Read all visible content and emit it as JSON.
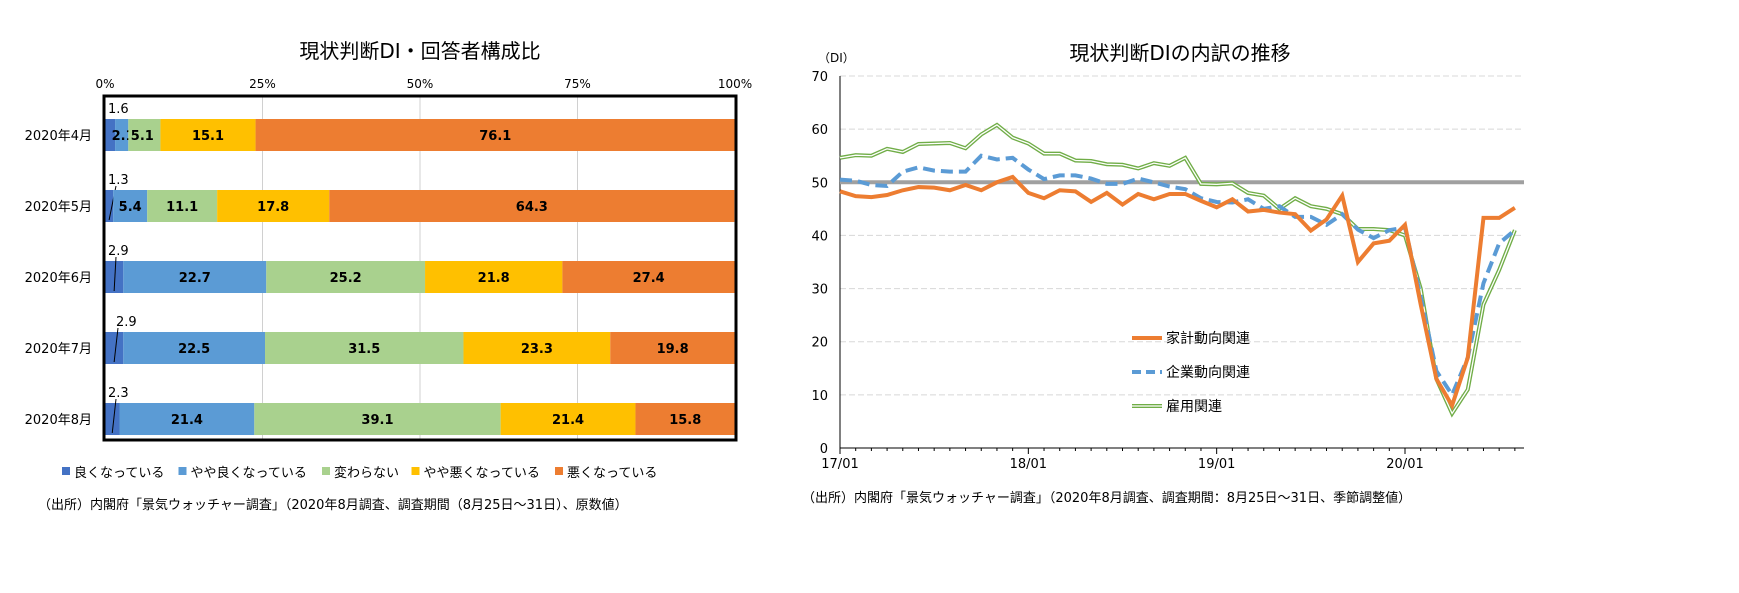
{
  "chart_data": [
    {
      "type": "bar",
      "orientation": "horizontal-stacked-100",
      "title": "現状判断DI・回答者構成比",
      "categories": [
        "2020年4月",
        "2020年5月",
        "2020年6月",
        "2020年7月",
        "2020年8月"
      ],
      "xticks": [
        "0%",
        "25%",
        "50%",
        "75%",
        "100%"
      ],
      "xlim": [
        0,
        100
      ],
      "series": [
        {
          "name": "良くなっている",
          "color": "#4472C4",
          "values": [
            1.6,
            1.3,
            2.9,
            2.9,
            2.3
          ]
        },
        {
          "name": "やや良くなっている",
          "color": "#5B9BD5",
          "values": [
            2.1,
            5.4,
            22.7,
            22.5,
            21.4
          ]
        },
        {
          "name": "変わらない",
          "color": "#A9D18E",
          "values": [
            5.1,
            11.1,
            25.2,
            31.5,
            39.1
          ]
        },
        {
          "name": "やや悪くなっている",
          "color": "#FFC000",
          "values": [
            15.1,
            17.8,
            21.8,
            23.3,
            21.4
          ]
        },
        {
          "name": "悪くなっている",
          "color": "#ED7D31",
          "values": [
            76.1,
            64.3,
            27.4,
            19.8,
            15.8
          ]
        }
      ],
      "legend": "bottom",
      "source": "（出所）内閣府「景気ウォッチャー調査」（2020年8月調査、調査期間（8月25日～31日）、原数値）"
    },
    {
      "type": "line",
      "title": "現状判断DIの内訳の推移",
      "ylabel": "（DI）",
      "ylim": [
        0,
        70
      ],
      "yticks": [
        "0",
        "10",
        "20",
        "30",
        "40",
        "50",
        "60",
        "70"
      ],
      "xticks": [
        "17/01",
        "18/01",
        "19/01",
        "20/01"
      ],
      "x_start": "2017-01",
      "x_end": "2020-08",
      "reference_line": 50,
      "grid": true,
      "legend": "center-right",
      "series": [
        {
          "name": "家計動向関連",
          "color": "#ED7D31",
          "style": "solid-thick",
          "values": [
            48.3,
            47.4,
            47.2,
            47.6,
            48.5,
            49.1,
            49.0,
            48.5,
            49.5,
            48.5,
            50.0,
            51.0,
            48.0,
            47.0,
            48.5,
            48.3,
            46.3,
            48.0,
            45.8,
            47.8,
            46.8,
            47.8,
            47.8,
            46.5,
            45.3,
            46.8,
            44.5,
            44.8,
            44.3,
            44.0,
            40.9,
            43.0,
            47.5,
            35.0,
            38.5,
            39.0,
            42.0,
            27.0,
            13.0,
            8.0,
            17.0,
            43.3,
            43.3,
            45.2
          ]
        },
        {
          "name": "企業動向関連",
          "color": "#5B9BD5",
          "style": "dashed",
          "values": [
            50.5,
            50.3,
            49.5,
            49.3,
            52.0,
            52.8,
            52.2,
            52.0,
            52.0,
            55.0,
            54.3,
            54.6,
            52.4,
            50.6,
            51.3,
            51.3,
            50.7,
            49.7,
            49.7,
            50.7,
            50.0,
            49.2,
            48.7,
            47.0,
            46.3,
            46.2,
            46.8,
            45.0,
            45.5,
            43.5,
            43.5,
            42.0,
            44.0,
            41.1,
            39.5,
            41.0,
            41.5,
            28.5,
            14.5,
            10.0,
            17.0,
            31.0,
            38.5,
            41.0
          ]
        },
        {
          "name": "雇用関連",
          "color": "#70AD47",
          "style": "double",
          "values": [
            54.6,
            55.1,
            55.0,
            56.3,
            55.7,
            57.2,
            57.3,
            57.4,
            56.4,
            59.0,
            60.8,
            58.4,
            57.3,
            55.4,
            55.4,
            54.1,
            54.0,
            53.4,
            53.3,
            52.6,
            53.6,
            53.1,
            54.6,
            49.7,
            49.6,
            49.8,
            48.0,
            47.5,
            45.0,
            47.0,
            45.5,
            45.0,
            44.0,
            41.2,
            41.2,
            41.0,
            40.0,
            30.0,
            13.0,
            6.5,
            11.0,
            27.0,
            33.5,
            41.0
          ]
        }
      ],
      "source": "（出所）内閣府「景気ウォッチャー調査」（2020年8月調査、調査期間：8月25日～31日、季節調整値）"
    }
  ]
}
